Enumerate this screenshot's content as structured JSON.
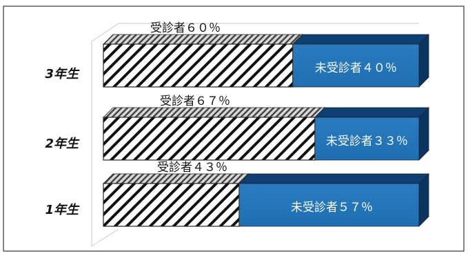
{
  "chart_data": {
    "type": "bar",
    "orientation": "horizontal",
    "stacked": true,
    "percent_stacked": true,
    "three_d": true,
    "grid": false,
    "legend": "none",
    "categories": [
      "3年生",
      "2年生",
      "1年生"
    ],
    "series": [
      {
        "key": "examined",
        "values": [
          60,
          67,
          43
        ],
        "labels": [
          "受診者６０％",
          "受診者６７％",
          "受診者４３％"
        ],
        "fill": "diagonal-hatch",
        "color": "#111111"
      },
      {
        "key": "not_examined",
        "values": [
          40,
          33,
          57
        ],
        "labels": [
          "未受診者４０％",
          "未受診者３３％",
          "未受診者５７％"
        ],
        "color": "#1f6fb2"
      }
    ],
    "xlim": [
      0,
      100
    ],
    "colors": {
      "not_examined_front": "#1f6fb2",
      "not_examined_top": "#0d3f73",
      "not_examined_side": "#0a3563",
      "hatch": "#111111",
      "frame": "#333333",
      "category_label": "#111111"
    }
  }
}
